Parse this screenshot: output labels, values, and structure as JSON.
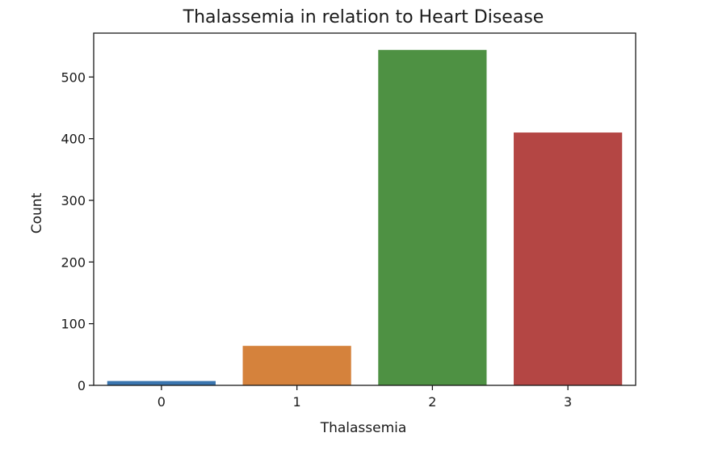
{
  "chart_data": {
    "type": "bar",
    "title": "Thalassemia in relation to Heart Disease",
    "xlabel": "Thalassemia",
    "ylabel": "Count",
    "categories": [
      "0",
      "1",
      "2",
      "3"
    ],
    "values": [
      7,
      64,
      544,
      410
    ],
    "colors": [
      "#3a75af",
      "#d5823c",
      "#4e9143",
      "#b44644"
    ],
    "ylim": [
      0,
      571.2
    ],
    "yticks": [
      0,
      100,
      200,
      300,
      400,
      500
    ],
    "grid": false
  }
}
